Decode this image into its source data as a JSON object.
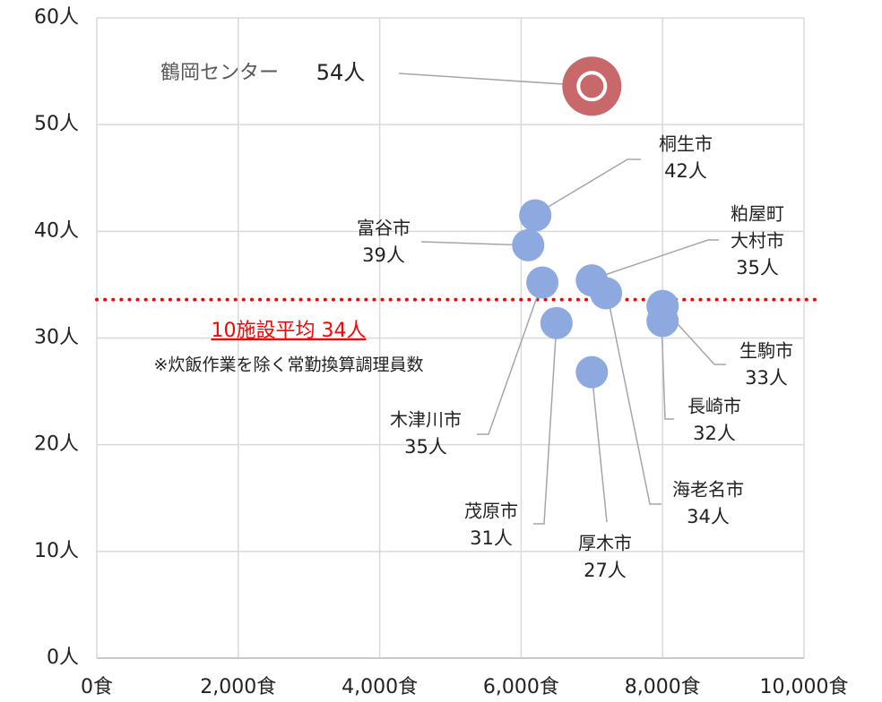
{
  "chart_data": {
    "type": "scatter",
    "xlim": [
      0,
      10000
    ],
    "ylim": [
      0,
      60
    ],
    "xticks": [
      {
        "value": 0,
        "label": "0食"
      },
      {
        "value": 2000,
        "label": "2,000食"
      },
      {
        "value": 4000,
        "label": "4,000食"
      },
      {
        "value": 6000,
        "label": "6,000食"
      },
      {
        "value": 8000,
        "label": "8,000食"
      },
      {
        "value": 10000,
        "label": "10,000食"
      }
    ],
    "yticks": [
      {
        "value": 0,
        "label": "0人"
      },
      {
        "value": 10,
        "label": "10人"
      },
      {
        "value": 20,
        "label": "20人"
      },
      {
        "value": 30,
        "label": "30人"
      },
      {
        "value": 40,
        "label": "40人"
      },
      {
        "value": 50,
        "label": "50人"
      },
      {
        "value": 60,
        "label": "60人"
      }
    ],
    "grid": true,
    "series": [
      {
        "color": "#c9686b",
        "names": [
          [
            "鶴岡センター"
          ]
        ],
        "x": [
          7000
        ],
        "values": [
          53.6
        ],
        "value_labels": [
          "54人"
        ]
      },
      {
        "color": "#8ea9e0",
        "names": [
          [
            "桐生市"
          ],
          [
            "富谷市"
          ],
          [
            "粕屋町",
            "大村市"
          ],
          [
            "木津川市"
          ],
          [
            "茂原市"
          ],
          [
            "厚木市"
          ],
          [
            "海老名市"
          ],
          [
            "生駒市"
          ],
          [
            "長崎市"
          ]
        ],
        "x": [
          6200,
          6100,
          7000,
          6300,
          6500,
          7000,
          7200,
          8000,
          8000
        ],
        "values": [
          41.5,
          38.7,
          35.4,
          35.2,
          31.4,
          26.8,
          34.2,
          33.0,
          31.6
        ],
        "value_labels": [
          "42人",
          "39人",
          "35人",
          "35人",
          "31人",
          "27人",
          "34人",
          "33人",
          "32人"
        ]
      }
    ],
    "reference_line": {
      "value": 33.6,
      "color": "#ff0000",
      "label": "10施設平均 34人"
    },
    "note": "※炊飯作業を除く常勤換算調理員数"
  }
}
